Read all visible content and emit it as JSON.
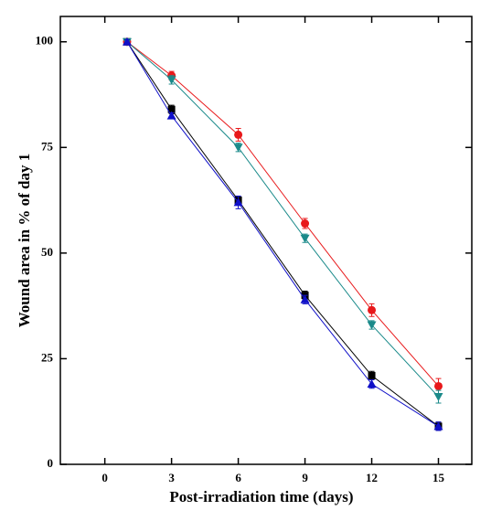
{
  "chart_data": {
    "type": "line",
    "x_label": "Post-irradiation time (days)",
    "y_label": "Wound area in % of day 1",
    "x": [
      1,
      3,
      6,
      9,
      12,
      15
    ],
    "xlim": [
      -2,
      16.5
    ],
    "xticks": [
      0,
      3,
      6,
      9,
      12,
      15
    ],
    "ylim": [
      0,
      106
    ],
    "yticks": [
      0,
      25,
      50,
      75,
      100
    ],
    "series": [
      {
        "color": "#000000",
        "marker": "square",
        "values": [
          100,
          84,
          62.5,
          40,
          21,
          9
        ],
        "errors": [
          0.5,
          1,
          1,
          1,
          1,
          1
        ]
      },
      {
        "color": "#e8191b",
        "marker": "circle",
        "values": [
          100,
          92,
          78,
          57,
          36.5,
          18.5
        ],
        "errors": [
          0.5,
          1,
          1.5,
          1.2,
          1.5,
          1.8
        ]
      },
      {
        "color": "#1a8a8a",
        "marker": "triangle-down",
        "values": [
          100,
          91,
          75,
          53.5,
          33,
          16
        ],
        "errors": [
          0.5,
          1,
          1,
          1,
          1,
          1.5
        ]
      },
      {
        "color": "#1010c8",
        "marker": "triangle-up",
        "values": [
          100,
          82.5,
          62,
          39,
          19,
          9
        ],
        "errors": [
          0.5,
          0.7,
          1.5,
          1,
          1,
          1
        ]
      }
    ]
  }
}
